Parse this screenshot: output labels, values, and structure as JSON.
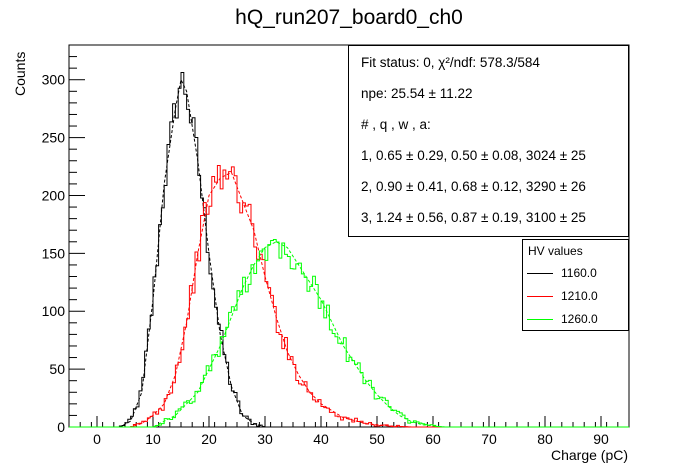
{
  "title": "hQ_run207_board0_ch0",
  "chart_data": {
    "type": "histogram",
    "title": "hQ_run207_board0_ch0",
    "xlabel": "Charge (pC)",
    "ylabel": "Counts",
    "xlim": [
      -5,
      95
    ],
    "ylim": [
      0,
      330
    ],
    "x_ticks": [
      0,
      10,
      20,
      30,
      40,
      50,
      60,
      70,
      80,
      90
    ],
    "y_ticks": [
      0,
      50,
      100,
      150,
      200,
      250,
      300
    ],
    "grid": false,
    "legend": {
      "title": "HV values",
      "position": "right",
      "entries": [
        "1160.0",
        "1210.0",
        "1260.0"
      ]
    },
    "series": [
      {
        "name": "1160.0",
        "color": "#000000",
        "x": [
          4,
          6,
          8,
          10,
          12,
          14,
          15,
          16,
          18,
          20,
          22,
          24,
          26,
          28,
          30
        ],
        "y": [
          0,
          5,
          30,
          110,
          210,
          275,
          300,
          290,
          230,
          150,
          80,
          35,
          10,
          3,
          0
        ]
      },
      {
        "name": "1210.0",
        "color": "#ff0000",
        "x": [
          6,
          8,
          10,
          12,
          14,
          16,
          18,
          20,
          22,
          24,
          26,
          28,
          30,
          32,
          34,
          36,
          38,
          40,
          44,
          48,
          52,
          56
        ],
        "y": [
          0,
          3,
          10,
          20,
          45,
          90,
          150,
          200,
          215,
          220,
          195,
          170,
          130,
          95,
          65,
          45,
          30,
          20,
          8,
          3,
          1,
          0
        ]
      },
      {
        "name": "1260.0",
        "color": "#00ff00",
        "x": [
          10,
          14,
          18,
          20,
          22,
          24,
          26,
          28,
          30,
          32,
          34,
          36,
          38,
          40,
          42,
          44,
          46,
          48,
          50,
          52,
          54,
          56,
          58,
          62
        ],
        "y": [
          0,
          10,
          30,
          50,
          70,
          95,
          120,
          140,
          155,
          160,
          155,
          140,
          125,
          110,
          90,
          70,
          55,
          40,
          28,
          18,
          10,
          5,
          2,
          0
        ]
      }
    ],
    "fit_stats": [
      "Fit status: 0, χ²/ndf: 578.3/584",
      "npe: 25.54 ± 11.22",
      "# , q , w , a:",
      "1, 0.65 ± 0.29, 0.50 ± 0.08, 3024 ± 25",
      "2, 0.90 ± 0.41, 0.68 ± 0.12, 3290 ± 26",
      "3, 1.24 ± 0.56, 0.87 ± 0.19, 3100 ± 25"
    ]
  }
}
